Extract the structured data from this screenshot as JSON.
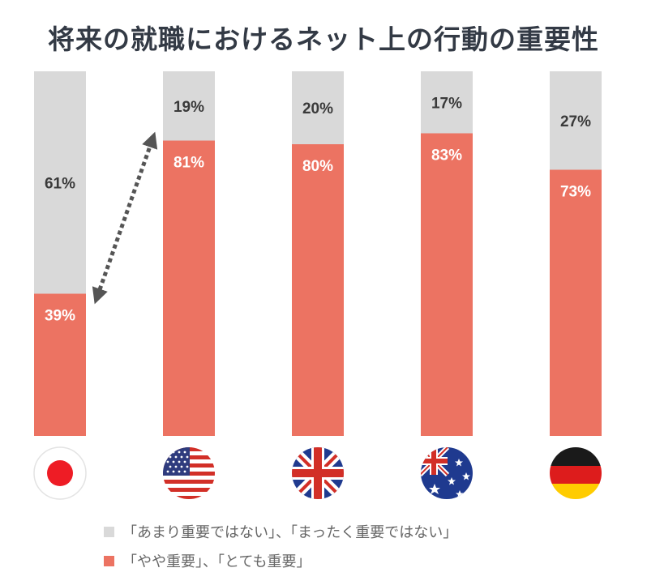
{
  "chart_data": {
    "type": "bar",
    "stacked": true,
    "percent_stacked": true,
    "title": "将来の就職におけるネット上の行動の重要性",
    "categories": [
      "Japan",
      "United States",
      "United Kingdom",
      "Australia",
      "Germany"
    ],
    "category_icons": [
      "japan-flag-icon",
      "us-flag-icon",
      "uk-flag-icon",
      "australia-flag-icon",
      "germany-flag-icon"
    ],
    "series": [
      {
        "name": "「やや重要」、「とても重要」",
        "values": [
          39,
          81,
          80,
          83,
          73
        ],
        "labels": [
          "39%",
          "81%",
          "80%",
          "83%",
          "73%"
        ],
        "color": "#ec7362"
      },
      {
        "name": "「あまり重要ではない」、「まったく重要ではない」",
        "values": [
          61,
          19,
          20,
          17,
          27
        ],
        "labels": [
          "61%",
          "19%",
          "20%",
          "17%",
          "27%"
        ],
        "color": "#d9d9d9"
      }
    ],
    "ylim": [
      0,
      100
    ],
    "grid": false,
    "legend_position": "bottom",
    "annotation": "dashed double-headed arrow linking Japan and United States important shares"
  },
  "colors": {
    "important": "#ec7362",
    "not_important": "#d9d9d9",
    "label_on_red": "#ffffff",
    "label_on_gray": "#3a3a3a",
    "arrow": "#555555"
  },
  "legend": [
    {
      "label": "「あまり重要ではない」、「まったく重要ではない」",
      "color": "#d9d9d9"
    },
    {
      "label": "「やや重要」、「とても重要」",
      "color": "#ec7362"
    }
  ]
}
